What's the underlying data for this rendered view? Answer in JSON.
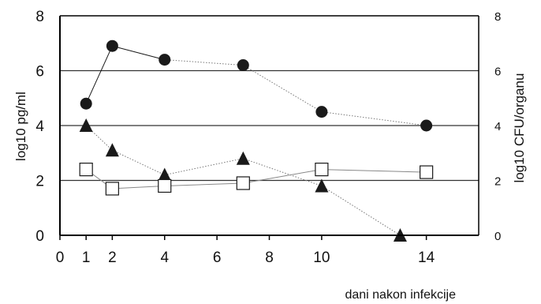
{
  "chart_data": {
    "type": "line",
    "title": "",
    "xlabel": "dani nakon infekcije",
    "ylabel_left": "log10  pg/ml",
    "ylabel_right": "log10  CFU/organu",
    "xlim": [
      0,
      16
    ],
    "ylim": [
      0,
      8
    ],
    "ylim_right": [
      0,
      8
    ],
    "x_ticks": [
      0,
      1,
      2,
      4,
      6,
      8,
      10,
      14
    ],
    "y_ticks": [
      0,
      2,
      4,
      6,
      8
    ],
    "y_ticks_right": [
      0,
      2,
      4,
      6,
      8
    ],
    "grid": "horizontal at 2, 4, 6",
    "legend": "none",
    "series": [
      {
        "marker": "filled-circle",
        "line_style": "solid then dotted",
        "color": "#1a1a1a",
        "x": [
          1,
          2,
          4,
          7,
          10,
          14
        ],
        "y": [
          4.8,
          6.9,
          6.4,
          6.2,
          4.5,
          4.0
        ]
      },
      {
        "marker": "filled-triangle",
        "line_style": "dotted",
        "color": "#1a1a1a",
        "x": [
          1,
          2,
          4,
          7,
          10,
          13
        ],
        "y": [
          4.0,
          3.1,
          2.2,
          2.8,
          1.8,
          0.0
        ]
      },
      {
        "marker": "open-square",
        "line_style": "thin solid",
        "color": "#1a1a1a",
        "x": [
          1,
          2,
          4,
          7,
          10,
          14
        ],
        "y": [
          2.4,
          1.7,
          1.8,
          1.9,
          2.4,
          2.3
        ]
      }
    ]
  }
}
